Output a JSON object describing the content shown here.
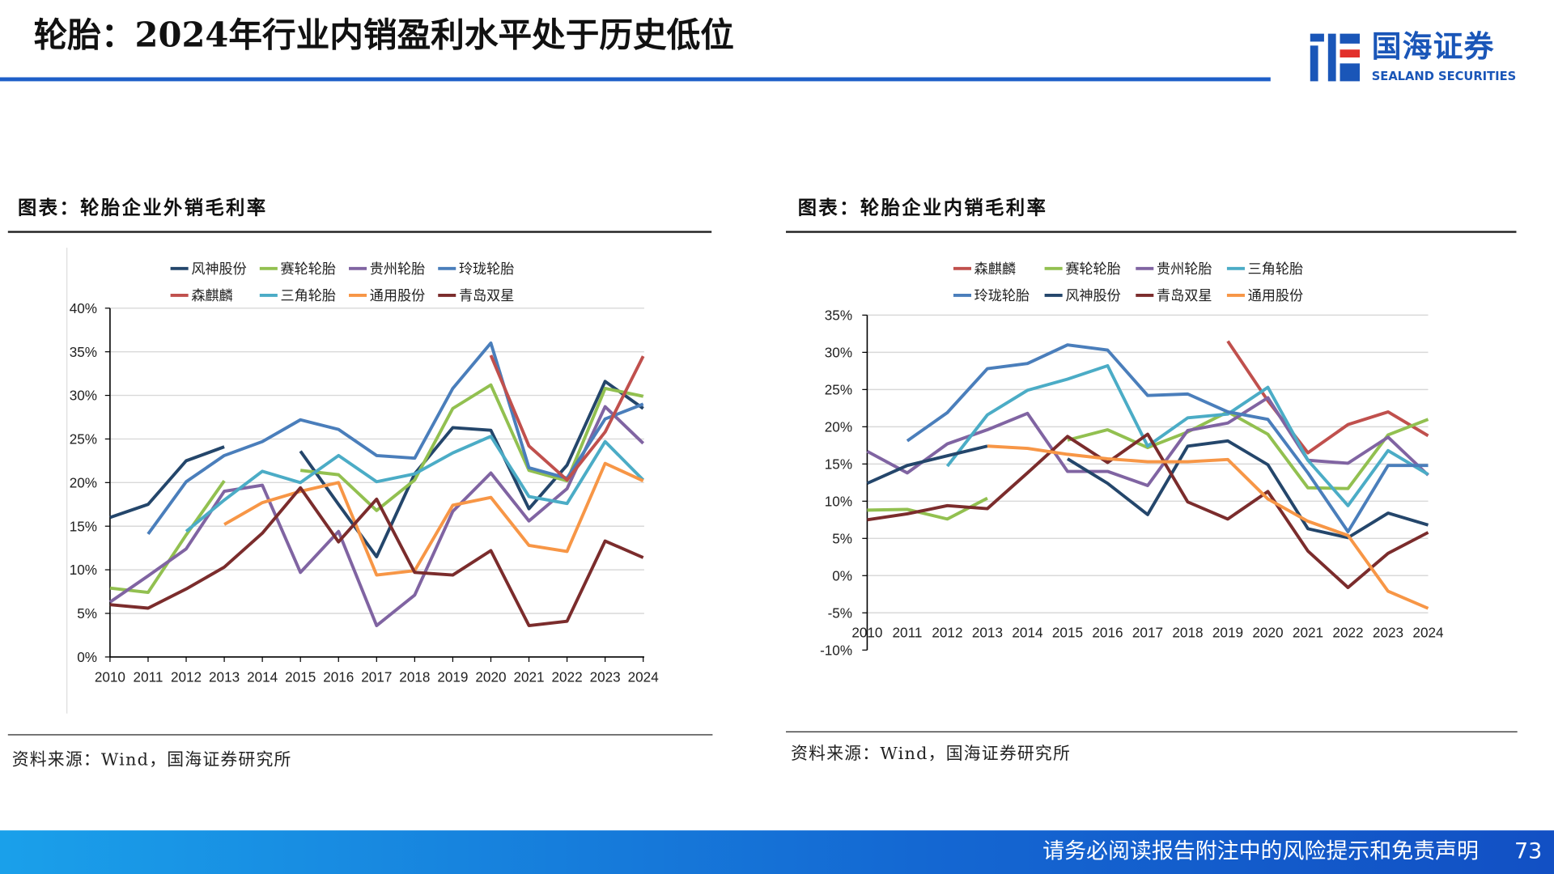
{
  "header": {
    "title": "轮胎：2024年行业内销盈利水平处于历史低位",
    "logo_cn": "国海证券",
    "logo_en": "SEALAND SECURITIES",
    "accent": "#1e5fc8"
  },
  "footer": {
    "disclaimer": "请务必阅读报告附注中的风险提示和免责声明",
    "page": "73"
  },
  "chart_data": [
    {
      "type": "line",
      "title": "图表：轮胎企业外销毛利率",
      "source": "资料来源：Wind，国海证券研究所",
      "categories": [
        "2010",
        "2011",
        "2012",
        "2013",
        "2014",
        "2015",
        "2016",
        "2017",
        "2018",
        "2019",
        "2020",
        "2021",
        "2022",
        "2023",
        "2024"
      ],
      "ylim": [
        0,
        40
      ],
      "yticks": [
        "0%",
        "5%",
        "10%",
        "15%",
        "20%",
        "25%",
        "30%",
        "35%",
        "40%"
      ],
      "grid": true,
      "legend": "top",
      "series": [
        {
          "name": "风神股份",
          "color": "#24466b",
          "values": [
            16,
            17.5,
            22.5,
            24.1,
            null,
            23.6,
            17.5,
            11.5,
            21,
            26.3,
            26,
            17,
            22,
            31.6,
            28.5
          ]
        },
        {
          "name": "赛轮轮胎",
          "color": "#92c050",
          "values": [
            7.9,
            7.4,
            14,
            20.2,
            null,
            21.4,
            20.9,
            16.8,
            20.3,
            28.5,
            31.2,
            21.4,
            20.2,
            30.8,
            29.9
          ]
        },
        {
          "name": "贵州轮胎",
          "color": "#8064a2",
          "values": [
            6.3,
            9.3,
            12.4,
            19,
            19.7,
            9.7,
            14.4,
            3.6,
            7.1,
            16.7,
            21.1,
            15.6,
            19.3,
            28.7,
            24.5
          ]
        },
        {
          "name": "玲珑轮胎",
          "color": "#4a7ebb",
          "values": [
            null,
            14.1,
            20.1,
            23.1,
            24.7,
            27.2,
            26.1,
            23.1,
            22.8,
            30.8,
            36,
            21.7,
            20.5,
            27.3,
            29
          ]
        },
        {
          "name": "森麒麟",
          "color": "#c0504d",
          "values": [
            null,
            null,
            null,
            null,
            null,
            null,
            null,
            null,
            null,
            null,
            34.6,
            24.2,
            20.3,
            25.8,
            34.5
          ]
        },
        {
          "name": "三角轮胎",
          "color": "#4bacc6",
          "values": [
            null,
            null,
            14.4,
            18,
            21.3,
            20,
            23.1,
            20.1,
            21,
            23.4,
            25.3,
            18.4,
            17.6,
            24.7,
            20.3
          ]
        },
        {
          "name": "通用股份",
          "color": "#f79646",
          "values": [
            null,
            null,
            null,
            15.2,
            17.7,
            19,
            20,
            9.4,
            9.9,
            17.4,
            18.3,
            12.8,
            12.1,
            22.2,
            20.2
          ]
        },
        {
          "name": "青岛双星",
          "color": "#7b2c2c",
          "values": [
            6,
            5.6,
            7.8,
            10.3,
            14.2,
            19.4,
            13.2,
            18.1,
            9.7,
            9.4,
            12.2,
            3.6,
            4.1,
            13.3,
            11.4
          ]
        }
      ]
    },
    {
      "type": "line",
      "title": "图表：轮胎企业内销毛利率",
      "source": "资料来源：Wind，国海证券研究所",
      "categories": [
        "2010",
        "2011",
        "2012",
        "2013",
        "2014",
        "2015",
        "2016",
        "2017",
        "2018",
        "2019",
        "2020",
        "2021",
        "2022",
        "2023",
        "2024"
      ],
      "ylim": [
        -10,
        35
      ],
      "yticks": [
        "-10%",
        "-5%",
        "0%",
        "5%",
        "10%",
        "15%",
        "20%",
        "25%",
        "30%",
        "35%"
      ],
      "grid": true,
      "legend": "top",
      "series": [
        {
          "name": "森麒麟",
          "color": "#c0504d",
          "values": [
            null,
            null,
            null,
            null,
            null,
            null,
            null,
            null,
            null,
            31.5,
            23.5,
            16.5,
            20.3,
            22,
            18.8
          ]
        },
        {
          "name": "赛轮轮胎",
          "color": "#92c050",
          "values": [
            8.8,
            8.9,
            7.6,
            10.4,
            null,
            18.2,
            19.6,
            17.2,
            19.3,
            22,
            19,
            11.8,
            11.7,
            18.9,
            21
          ]
        },
        {
          "name": "贵州轮胎",
          "color": "#8064a2",
          "values": [
            16.7,
            13.8,
            17.7,
            19.6,
            21.8,
            14,
            14,
            12.1,
            19.5,
            20.5,
            23.9,
            15.5,
            15.1,
            18.6,
            13.5
          ]
        },
        {
          "name": "三角轮胎",
          "color": "#4bacc6",
          "values": [
            null,
            null,
            14.7,
            21.6,
            24.9,
            26.4,
            28.2,
            17.4,
            21.2,
            21.7,
            25.3,
            15.5,
            9.4,
            16.8,
            13.6
          ]
        },
        {
          "name": "玲珑轮胎",
          "color": "#4a7ebb",
          "values": [
            null,
            18.1,
            21.9,
            27.8,
            28.5,
            31,
            30.3,
            24.2,
            24.4,
            22,
            21,
            13.8,
            5.9,
            14.8,
            14.8
          ]
        },
        {
          "name": "风神股份",
          "color": "#24466b",
          "values": [
            12.4,
            14.8,
            16.1,
            17.4,
            null,
            15.7,
            12.4,
            8.2,
            17.4,
            18.1,
            14.9,
            6.3,
            5.1,
            8.4,
            6.8
          ]
        },
        {
          "name": "青岛双星",
          "color": "#7b2c2c",
          "values": [
            7.5,
            8.3,
            9.4,
            9,
            13.8,
            18.7,
            15.2,
            19,
            9.9,
            7.6,
            11.3,
            3.3,
            -1.6,
            3,
            5.8
          ]
        },
        {
          "name": "通用股份",
          "color": "#f79646",
          "values": [
            null,
            null,
            null,
            17.4,
            17.1,
            16.3,
            15.7,
            15.3,
            15.3,
            15.6,
            10.3,
            7.3,
            5.4,
            -2.1,
            -4.4
          ]
        }
      ]
    }
  ]
}
